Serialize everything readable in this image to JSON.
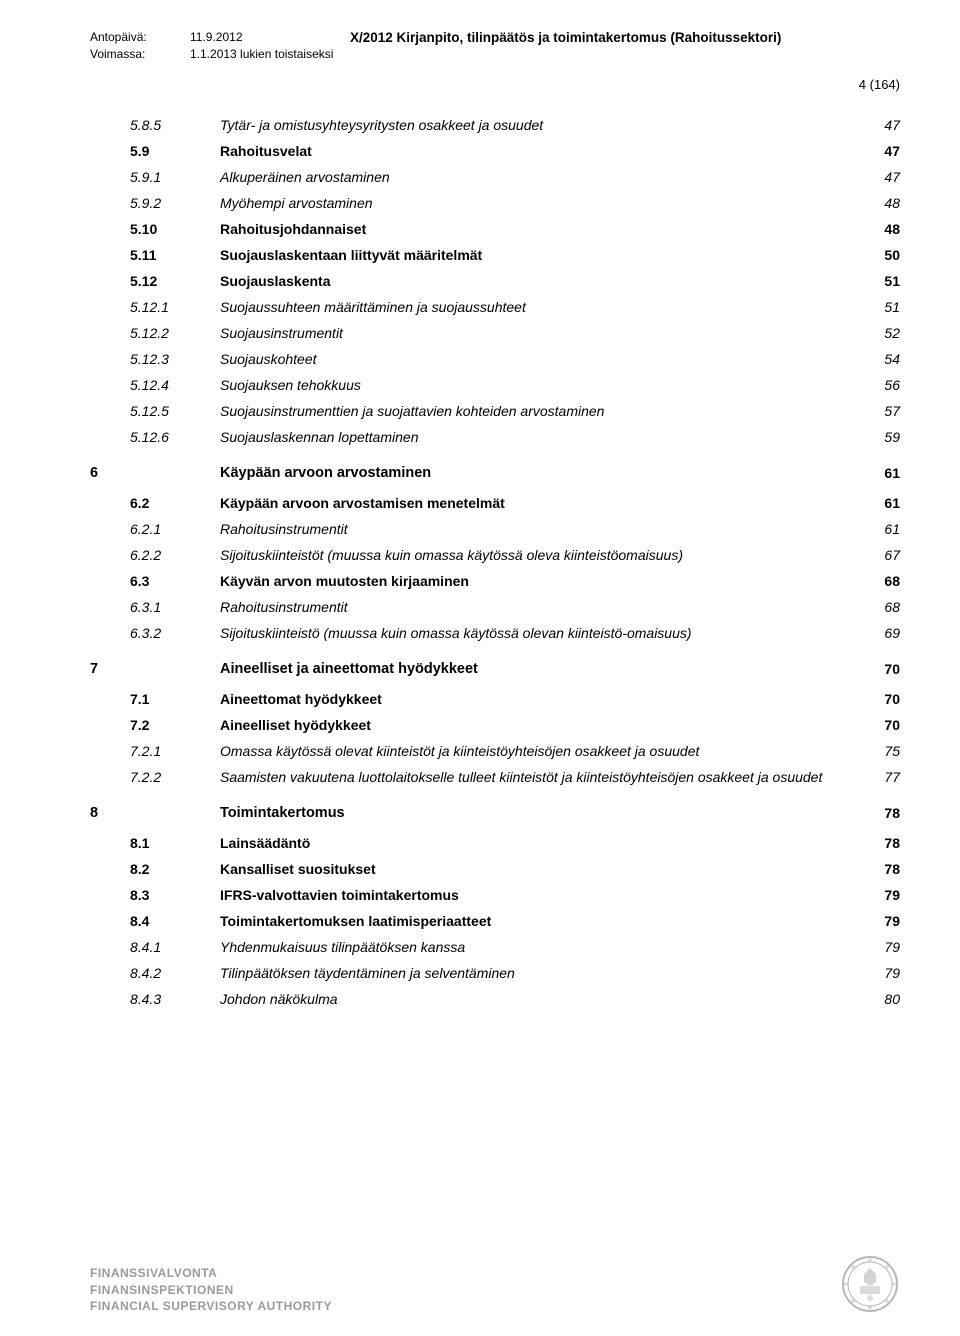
{
  "header": {
    "label1": "Antopäivä:",
    "val1": "11.9.2012",
    "title": "X/2012 Kirjanpito, tilinpäätös ja toimintakertomus (Rahoitussektori)",
    "label2": "Voimassa:",
    "val2": "1.1.2013 lukien toistaiseksi",
    "page_num": "4 (164)"
  },
  "toc": [
    {
      "chap": "",
      "num": "5.8.5",
      "title": "Tytär- ja omistusyhteysyritysten osakkeet ja osuudet",
      "page": "47",
      "style": "italic"
    },
    {
      "chap": "",
      "num": "5.9",
      "title": "Rahoitusvelat",
      "page": "47",
      "style": "bold"
    },
    {
      "chap": "",
      "num": "5.9.1",
      "title": "Alkuperäinen arvostaminen",
      "page": "47",
      "style": "italic"
    },
    {
      "chap": "",
      "num": "5.9.2",
      "title": "Myöhempi arvostaminen",
      "page": "48",
      "style": "italic"
    },
    {
      "chap": "",
      "num": "5.10",
      "title": "Rahoitusjohdannaiset",
      "page": "48",
      "style": "bold"
    },
    {
      "chap": "",
      "num": "5.11",
      "title": "Suojauslaskentaan liittyvät määritelmät",
      "page": "50",
      "style": "bold"
    },
    {
      "chap": "",
      "num": "5.12",
      "title": "Suojauslaskenta",
      "page": "51",
      "style": "bold"
    },
    {
      "chap": "",
      "num": "5.12.1",
      "title": "Suojaussuhteen määrittäminen ja suojaussuhteet",
      "page": "51",
      "style": "italic"
    },
    {
      "chap": "",
      "num": "5.12.2",
      "title": "Suojausinstrumentit",
      "page": "52",
      "style": "italic"
    },
    {
      "chap": "",
      "num": "5.12.3",
      "title": "Suojauskohteet",
      "page": "54",
      "style": "italic"
    },
    {
      "chap": "",
      "num": "5.12.4",
      "title": "Suojauksen tehokkuus",
      "page": "56",
      "style": "italic"
    },
    {
      "chap": "",
      "num": "5.12.5",
      "title": "Suojausinstrumenttien ja suojattavien kohteiden arvostaminen",
      "page": "57",
      "style": "italic"
    },
    {
      "chap": "",
      "num": "5.12.6",
      "title": "Suojauslaskennan lopettaminen",
      "page": "59",
      "style": "italic"
    },
    {
      "chap": "6",
      "num": "",
      "title": "Käypään arvoon arvostaminen",
      "page": "61",
      "style": "chapter"
    },
    {
      "chap": "",
      "num": "6.2",
      "title": "Käypään arvoon arvostamisen menetelmät",
      "page": "61",
      "style": "bold"
    },
    {
      "chap": "",
      "num": "6.2.1",
      "title": "Rahoitusinstrumentit",
      "page": "61",
      "style": "italic"
    },
    {
      "chap": "",
      "num": "6.2.2",
      "title": "Sijoituskiinteistöt (muussa kuin omassa käytössä oleva kiinteistöomaisuus)",
      "page": "67",
      "style": "italic"
    },
    {
      "chap": "",
      "num": "6.3",
      "title": "Käyvän arvon muutosten kirjaaminen",
      "page": "68",
      "style": "bold"
    },
    {
      "chap": "",
      "num": "6.3.1",
      "title": "Rahoitusinstrumentit",
      "page": "68",
      "style": "italic"
    },
    {
      "chap": "",
      "num": "6.3.2",
      "title": "Sijoituskiinteistö (muussa kuin omassa käytössä olevan kiinteistö-omaisuus)",
      "page": "69",
      "style": "italic"
    },
    {
      "chap": "7",
      "num": "",
      "title": "Aineelliset ja aineettomat hyödykkeet",
      "page": "70",
      "style": "chapter"
    },
    {
      "chap": "",
      "num": "7.1",
      "title": "Aineettomat hyödykkeet",
      "page": "70",
      "style": "bold"
    },
    {
      "chap": "",
      "num": "7.2",
      "title": "Aineelliset hyödykkeet",
      "page": "70",
      "style": "bold"
    },
    {
      "chap": "",
      "num": "7.2.1",
      "title": "Omassa käytössä olevat kiinteistöt ja kiinteistöyhteisöjen osakkeet ja osuudet",
      "page": "75",
      "style": "italic"
    },
    {
      "chap": "",
      "num": "7.2.2",
      "title": "Saamisten vakuutena luottolaitokselle tulleet kiinteistöt ja kiinteistöyhteisöjen osakkeet ja osuudet",
      "page": "77",
      "style": "italic"
    },
    {
      "chap": "8",
      "num": "",
      "title": "Toimintakertomus",
      "page": "78",
      "style": "chapter"
    },
    {
      "chap": "",
      "num": "8.1",
      "title": "Lainsäädäntö",
      "page": "78",
      "style": "bold"
    },
    {
      "chap": "",
      "num": "8.2",
      "title": "Kansalliset suositukset",
      "page": "78",
      "style": "bold"
    },
    {
      "chap": "",
      "num": "8.3",
      "title": "IFRS-valvottavien toimintakertomus",
      "page": "79",
      "style": "bold"
    },
    {
      "chap": "",
      "num": "8.4",
      "title": "Toimintakertomuksen laatimisperiaatteet",
      "page": "79",
      "style": "bold"
    },
    {
      "chap": "",
      "num": "8.4.1",
      "title": "Yhdenmukaisuus tilinpäätöksen kanssa",
      "page": "79",
      "style": "italic"
    },
    {
      "chap": "",
      "num": "8.4.2",
      "title": "Tilinpäätöksen täydentäminen ja selventäminen",
      "page": "79",
      "style": "italic"
    },
    {
      "chap": "",
      "num": "8.4.3",
      "title": "Johdon näkökulma",
      "page": "80",
      "style": "italic"
    }
  ],
  "footer": {
    "line1": "FINANSSIVALVONTA",
    "line2": "FINANSINSPEKTIONEN",
    "line3": "FINANCIAL SUPERVISORY AUTHORITY"
  },
  "colors": {
    "text": "#000000",
    "footer_text": "#9a9a9a",
    "emblem": "#b7b7b7",
    "background": "#ffffff"
  }
}
